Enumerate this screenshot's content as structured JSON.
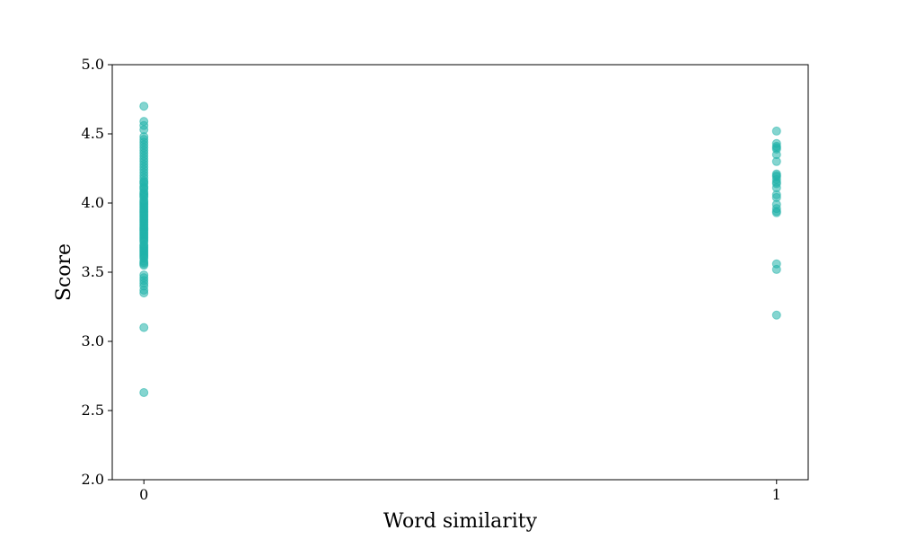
{
  "chart_data": {
    "type": "scatter",
    "title": "",
    "xlabel": "Word similarity",
    "ylabel": "Score",
    "xlim": [
      -0.05,
      1.05
    ],
    "ylim": [
      2.0,
      5.0
    ],
    "x_ticks": [
      0,
      1
    ],
    "x_tick_labels": [
      "0",
      "1"
    ],
    "y_ticks": [
      2.0,
      2.5,
      3.0,
      3.5,
      4.0,
      4.5,
      5.0
    ],
    "y_tick_labels": [
      "2.0",
      "2.5",
      "3.0",
      "3.5",
      "4.0",
      "4.5",
      "5.0"
    ],
    "grid": false,
    "marker_color": "#20b2aa",
    "marker_alpha": 0.55,
    "series": [
      {
        "x": [
          0,
          0,
          0,
          0,
          0,
          0,
          0,
          0,
          0,
          0,
          0,
          0,
          0,
          0,
          0,
          0,
          0,
          0,
          0,
          0,
          0,
          0,
          0,
          0,
          0,
          0,
          0,
          0,
          0,
          0,
          0,
          0,
          0,
          0,
          0,
          0,
          0,
          0,
          0,
          0,
          0,
          0,
          0,
          0,
          0,
          0,
          0,
          0,
          0,
          0,
          0,
          0,
          0,
          0,
          0,
          0,
          0,
          0,
          0,
          0,
          0,
          0,
          0,
          0,
          0,
          0,
          0,
          0,
          0,
          0,
          0,
          0,
          0,
          0,
          0,
          0,
          0,
          0,
          0,
          0
        ],
        "y": [
          4.7,
          4.59,
          4.56,
          4.53,
          4.48,
          4.46,
          4.44,
          4.42,
          4.4,
          4.38,
          4.36,
          4.34,
          4.32,
          4.3,
          4.28,
          4.26,
          4.24,
          4.22,
          4.2,
          4.18,
          4.16,
          4.15,
          4.14,
          4.12,
          4.11,
          4.1,
          4.08,
          4.07,
          4.06,
          4.05,
          4.04,
          4.02,
          4.01,
          4.0,
          3.99,
          3.98,
          3.97,
          3.96,
          3.95,
          3.94,
          3.93,
          3.92,
          3.91,
          3.9,
          3.89,
          3.88,
          3.87,
          3.86,
          3.85,
          3.84,
          3.83,
          3.82,
          3.81,
          3.8,
          3.79,
          3.78,
          3.77,
          3.76,
          3.75,
          3.74,
          3.73,
          3.72,
          3.7,
          3.69,
          3.68,
          3.67,
          3.66,
          3.65,
          3.64,
          3.63,
          3.62,
          3.61,
          3.6,
          3.58,
          3.57,
          3.56,
          3.55,
          3.48,
          3.46,
          3.44
        ]
      },
      {
        "x": [
          0,
          0,
          0,
          0,
          0
        ],
        "y": [
          3.42,
          3.4,
          3.37,
          3.35,
          3.1
        ]
      },
      {
        "x": [
          0
        ],
        "y": [
          2.63
        ]
      },
      {
        "x": [
          1,
          1,
          1,
          1,
          1,
          1,
          1,
          1,
          1,
          1,
          1,
          1,
          1,
          1,
          1,
          1,
          1,
          1,
          1,
          1,
          1,
          1,
          1
        ],
        "y": [
          4.52,
          4.43,
          4.41,
          4.39,
          4.35,
          4.3,
          4.21,
          4.19,
          4.17,
          4.15,
          4.11,
          4.06,
          4.04,
          3.99,
          3.96,
          3.94,
          3.93,
          3.56,
          3.52,
          3.19,
          4.2,
          4.14,
          4.4
        ]
      }
    ]
  }
}
